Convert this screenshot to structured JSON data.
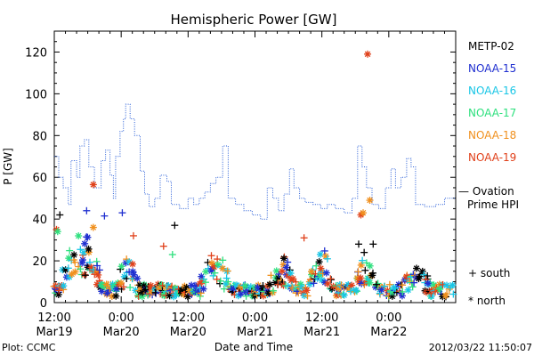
{
  "chart_data": {
    "type": "scatter",
    "title": "Hemispheric Power [GW]",
    "ylabel": "P [GW]",
    "xlabel": "Date and Time",
    "ylim": [
      0,
      130
    ],
    "yticks": [
      0,
      20,
      40,
      60,
      80,
      100,
      120
    ],
    "xlim_hours": [
      0,
      72
    ],
    "xticks": [
      {
        "hour": 0,
        "time": "12:00",
        "date": "Mar19"
      },
      {
        "hour": 12,
        "time": "0:00",
        "date": "Mar20"
      },
      {
        "hour": 24,
        "time": "12:00",
        "date": "Mar20"
      },
      {
        "hour": 36,
        "time": "0:00",
        "date": "Mar21"
      },
      {
        "hour": 48,
        "time": "12:00",
        "date": "Mar21"
      },
      {
        "hour": 60,
        "time": "0:00",
        "date": "Mar22"
      }
    ],
    "legend": [
      {
        "name": "METP-02",
        "color": "#000000"
      },
      {
        "name": "NOAA-15",
        "color": "#1f2fd0"
      },
      {
        "name": "NOAA-16",
        "color": "#19c6e6"
      },
      {
        "name": "NOAA-17",
        "color": "#2ee07e"
      },
      {
        "name": "NOAA-18",
        "color": "#f0901e"
      },
      {
        "name": "NOAA-19",
        "color": "#e0401a"
      }
    ],
    "ovation_label_line1": "— Ovation",
    "ovation_label_line2": "Prime HPI",
    "ovation_color": "#2a5fd8",
    "ovation": [
      [
        0,
        70
      ],
      [
        0.8,
        70
      ],
      [
        0.8,
        60
      ],
      [
        1.6,
        60
      ],
      [
        1.6,
        55
      ],
      [
        2.5,
        55
      ],
      [
        2.5,
        47
      ],
      [
        3.0,
        47
      ],
      [
        3.0,
        68
      ],
      [
        4.0,
        68
      ],
      [
        4.0,
        60
      ],
      [
        4.6,
        60
      ],
      [
        4.6,
        75
      ],
      [
        5.4,
        75
      ],
      [
        5.4,
        78
      ],
      [
        6.2,
        78
      ],
      [
        6.2,
        65
      ],
      [
        7.2,
        65
      ],
      [
        7.2,
        55
      ],
      [
        8.4,
        55
      ],
      [
        8.4,
        68
      ],
      [
        9.2,
        68
      ],
      [
        9.2,
        73
      ],
      [
        10.0,
        73
      ],
      [
        10.0,
        61
      ],
      [
        10.6,
        61
      ],
      [
        10.6,
        50
      ],
      [
        11.0,
        50
      ],
      [
        11.0,
        70
      ],
      [
        11.8,
        70
      ],
      [
        11.8,
        82
      ],
      [
        12.4,
        82
      ],
      [
        12.4,
        88
      ],
      [
        12.8,
        88
      ],
      [
        12.8,
        95
      ],
      [
        13.6,
        95
      ],
      [
        13.6,
        88
      ],
      [
        14.4,
        88
      ],
      [
        14.4,
        80
      ],
      [
        15.4,
        80
      ],
      [
        15.4,
        63
      ],
      [
        16.2,
        63
      ],
      [
        16.2,
        52
      ],
      [
        17.0,
        52
      ],
      [
        17.0,
        46
      ],
      [
        18.0,
        46
      ],
      [
        18.0,
        50
      ],
      [
        19.0,
        50
      ],
      [
        19.0,
        61
      ],
      [
        20.2,
        61
      ],
      [
        20.2,
        58
      ],
      [
        21.0,
        58
      ],
      [
        21.0,
        47
      ],
      [
        22.5,
        47
      ],
      [
        22.5,
        45
      ],
      [
        24.0,
        45
      ],
      [
        24.0,
        50
      ],
      [
        25.0,
        50
      ],
      [
        25.0,
        47
      ],
      [
        26.0,
        47
      ],
      [
        26.0,
        50
      ],
      [
        27.0,
        50
      ],
      [
        27.0,
        53
      ],
      [
        28.0,
        53
      ],
      [
        28.0,
        57
      ],
      [
        29.0,
        57
      ],
      [
        29.0,
        60
      ],
      [
        30.2,
        60
      ],
      [
        30.2,
        75
      ],
      [
        31.2,
        75
      ],
      [
        31.2,
        50
      ],
      [
        32.5,
        50
      ],
      [
        32.5,
        47
      ],
      [
        34.0,
        47
      ],
      [
        34.0,
        44
      ],
      [
        35.5,
        44
      ],
      [
        35.5,
        42
      ],
      [
        37.0,
        42
      ],
      [
        37.0,
        40
      ],
      [
        38.2,
        40
      ],
      [
        38.2,
        55
      ],
      [
        39.2,
        55
      ],
      [
        39.2,
        50
      ],
      [
        40.2,
        50
      ],
      [
        40.2,
        44
      ],
      [
        41.2,
        44
      ],
      [
        41.2,
        52
      ],
      [
        42.2,
        52
      ],
      [
        42.2,
        64
      ],
      [
        43.0,
        64
      ],
      [
        43.0,
        55
      ],
      [
        44.0,
        55
      ],
      [
        44.0,
        50
      ],
      [
        45.0,
        50
      ],
      [
        45.0,
        48
      ],
      [
        46.4,
        48
      ],
      [
        46.4,
        47
      ],
      [
        47.8,
        47
      ],
      [
        47.8,
        45
      ],
      [
        49.0,
        45
      ],
      [
        49.0,
        47
      ],
      [
        50.4,
        47
      ],
      [
        50.4,
        45
      ],
      [
        52.0,
        45
      ],
      [
        52.0,
        43
      ],
      [
        53.4,
        43
      ],
      [
        53.4,
        50
      ],
      [
        54.4,
        50
      ],
      [
        54.4,
        75
      ],
      [
        55.2,
        75
      ],
      [
        55.2,
        65
      ],
      [
        56.0,
        65
      ],
      [
        56.0,
        55
      ],
      [
        57.0,
        55
      ],
      [
        57.0,
        47
      ],
      [
        58.2,
        47
      ],
      [
        58.2,
        45
      ],
      [
        59.4,
        45
      ],
      [
        59.4,
        55
      ],
      [
        60.4,
        55
      ],
      [
        60.4,
        64
      ],
      [
        61.2,
        64
      ],
      [
        61.2,
        55
      ],
      [
        62.2,
        55
      ],
      [
        62.2,
        60
      ],
      [
        63.2,
        60
      ],
      [
        63.2,
        69
      ],
      [
        64.0,
        69
      ],
      [
        64.0,
        65
      ],
      [
        64.8,
        65
      ],
      [
        64.8,
        47
      ],
      [
        66.4,
        47
      ],
      [
        66.4,
        46
      ],
      [
        68.4,
        46
      ],
      [
        68.4,
        47
      ],
      [
        70.0,
        47
      ],
      [
        70.0,
        50
      ],
      [
        72.0,
        50
      ]
    ],
    "markers": {
      "outliers": [
        {
          "x": 56.2,
          "y": 119,
          "color": "#e0401a",
          "shape": "star"
        },
        {
          "x": 7.0,
          "y": 56.5,
          "color": "#e0401a",
          "shape": "star"
        },
        {
          "x": 55.0,
          "y": 42,
          "color": "#e0401a",
          "shape": "star"
        },
        {
          "x": 55.4,
          "y": 43,
          "color": "#f0901e",
          "shape": "star"
        },
        {
          "x": 56.6,
          "y": 49,
          "color": "#f0901e",
          "shape": "star"
        },
        {
          "x": 0.4,
          "y": 35,
          "color": "#e0401a",
          "shape": "star"
        },
        {
          "x": 0.6,
          "y": 34,
          "color": "#2ee07e",
          "shape": "star"
        },
        {
          "x": 1.0,
          "y": 42,
          "color": "#000000",
          "shape": "plus"
        },
        {
          "x": 5.8,
          "y": 44,
          "color": "#1f2fd0",
          "shape": "plus"
        },
        {
          "x": 9.0,
          "y": 41.5,
          "color": "#1f2fd0",
          "shape": "plus"
        },
        {
          "x": 12.2,
          "y": 43,
          "color": "#1f2fd0",
          "shape": "plus"
        },
        {
          "x": 21.6,
          "y": 37,
          "color": "#000000",
          "shape": "plus"
        },
        {
          "x": 54.6,
          "y": 28,
          "color": "#000000",
          "shape": "plus"
        },
        {
          "x": 57.2,
          "y": 28,
          "color": "#000000",
          "shape": "plus"
        },
        {
          "x": 44.8,
          "y": 31,
          "color": "#e0401a",
          "shape": "plus"
        },
        {
          "x": 7.0,
          "y": 36,
          "color": "#f0901e",
          "shape": "star"
        },
        {
          "x": 14.2,
          "y": 32,
          "color": "#e0401a",
          "shape": "plus"
        },
        {
          "x": 19.6,
          "y": 27,
          "color": "#e0401a",
          "shape": "plus"
        },
        {
          "x": 21.2,
          "y": 23,
          "color": "#2ee07e",
          "shape": "plus"
        }
      ],
      "bursts": [
        {
          "center": 5.0,
          "width": 8.0,
          "peak": 30
        },
        {
          "center": 13.0,
          "width": 4.0,
          "peak": 20
        },
        {
          "center": 29.0,
          "width": 6.0,
          "peak": 22
        },
        {
          "center": 41.0,
          "width": 5.0,
          "peak": 20
        },
        {
          "center": 48.0,
          "width": 5.0,
          "peak": 24
        },
        {
          "center": 56.0,
          "width": 4.0,
          "peak": 25
        },
        {
          "center": 65.0,
          "width": 5.0,
          "peak": 16
        }
      ],
      "base_level": 8
    },
    "side_labels": {
      "south": "+ south",
      "north": "* north"
    }
  },
  "footer": {
    "plot_credit": "Plot: CCMC",
    "timestamp": "2012/03/22 11:50:07"
  }
}
